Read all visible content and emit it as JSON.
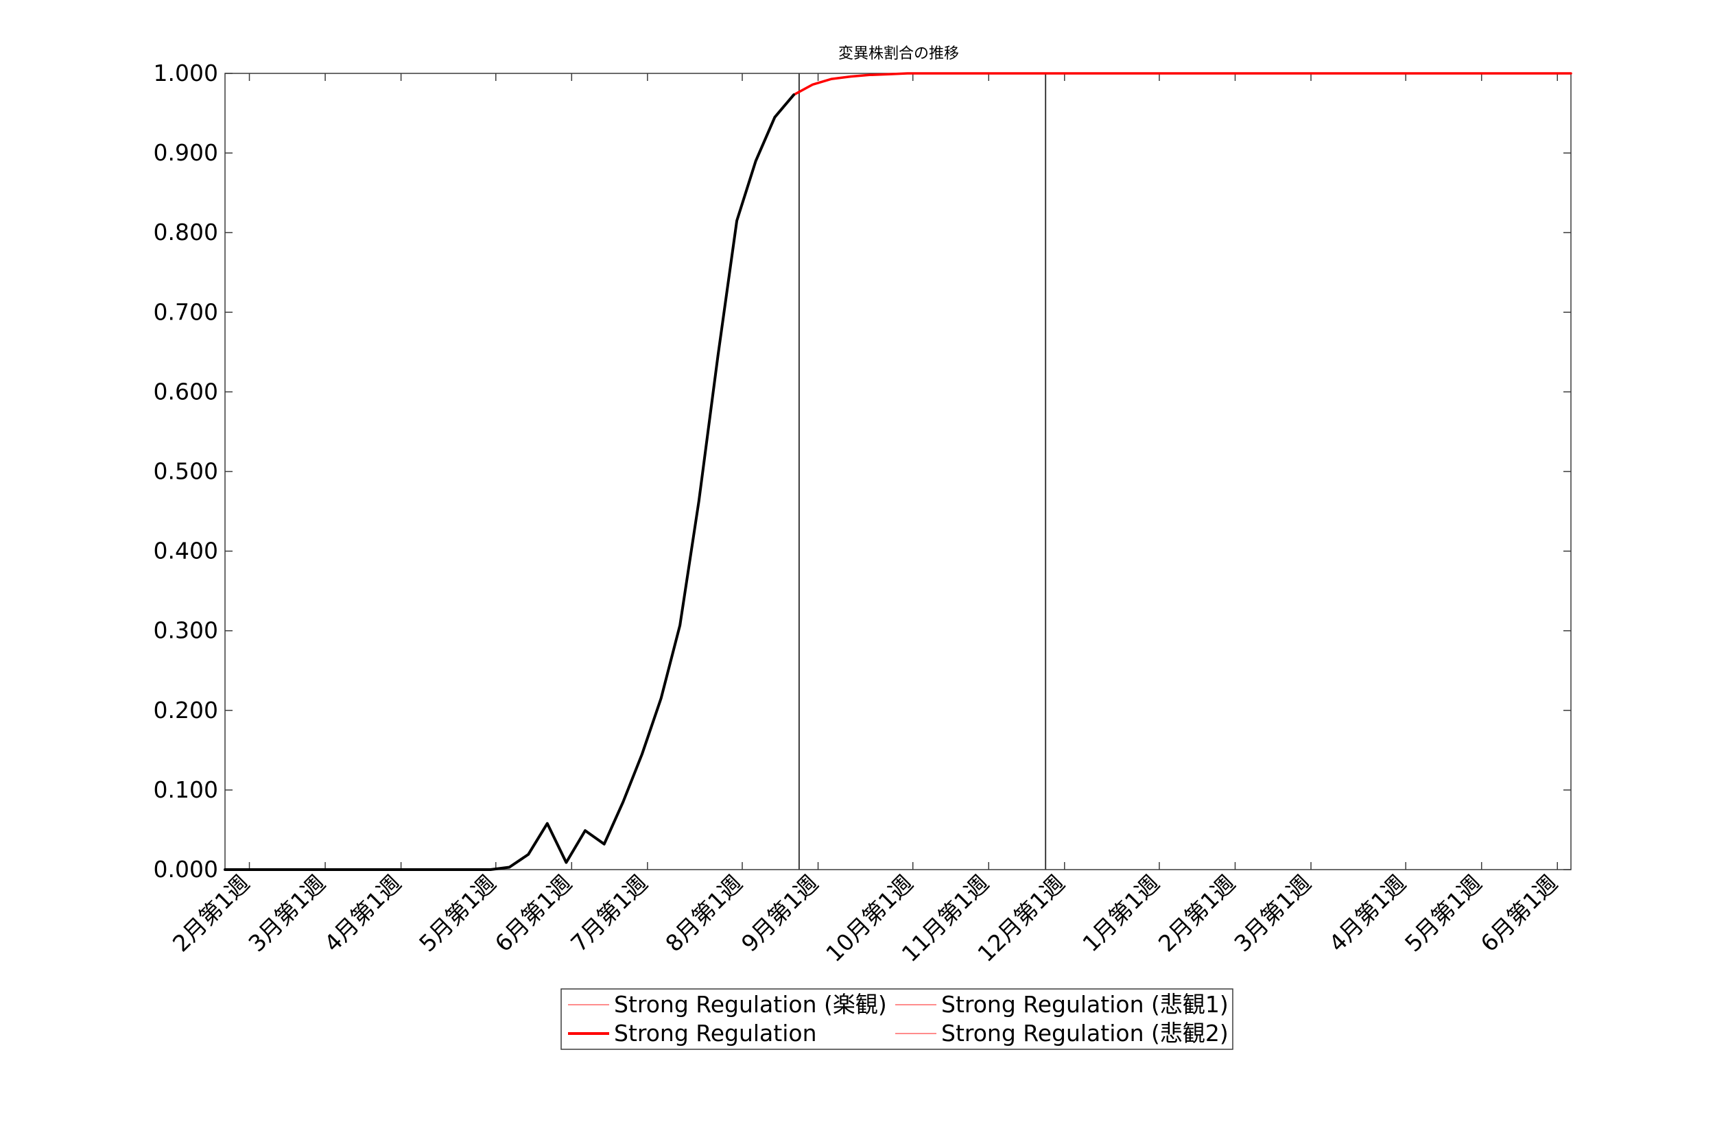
{
  "chart_data": {
    "type": "line",
    "title": "変異株割合の推移",
    "xlabel": "",
    "ylabel": "",
    "ylim": [
      0,
      1
    ],
    "grid": false,
    "legend_position": "bottom-center",
    "x_range": [
      "2021-01-23",
      "2022-06-04"
    ],
    "x_ticks": [
      {
        "date": "2021-02-01",
        "label": "2月第1週"
      },
      {
        "date": "2021-03-01",
        "label": "3月第1週"
      },
      {
        "date": "2021-03-29",
        "label": "4月第1週"
      },
      {
        "date": "2021-05-03",
        "label": "5月第1週"
      },
      {
        "date": "2021-05-31",
        "label": "6月第1週"
      },
      {
        "date": "2021-06-28",
        "label": "7月第1週"
      },
      {
        "date": "2021-08-02",
        "label": "8月第1週"
      },
      {
        "date": "2021-08-30",
        "label": "9月第1週"
      },
      {
        "date": "2021-10-04",
        "label": "10月第1週"
      },
      {
        "date": "2021-11-01",
        "label": "11月第1週"
      },
      {
        "date": "2021-11-29",
        "label": "12月第1週"
      },
      {
        "date": "2022-01-03",
        "label": "1月第1週"
      },
      {
        "date": "2022-01-31",
        "label": "2月第1週"
      },
      {
        "date": "2022-02-28",
        "label": "3月第1週"
      },
      {
        "date": "2022-04-04",
        "label": "4月第1週"
      },
      {
        "date": "2022-05-02",
        "label": "5月第1週"
      },
      {
        "date": "2022-05-30",
        "label": "6月第1週"
      }
    ],
    "y_ticks": [
      {
        "value": 0.0,
        "label": "0.000"
      },
      {
        "value": 0.1,
        "label": "0.100"
      },
      {
        "value": 0.2,
        "label": "0.200"
      },
      {
        "value": 0.3,
        "label": "0.300"
      },
      {
        "value": 0.4,
        "label": "0.400"
      },
      {
        "value": 0.5,
        "label": "0.500"
      },
      {
        "value": 0.6,
        "label": "0.600"
      },
      {
        "value": 0.7,
        "label": "0.700"
      },
      {
        "value": 0.8,
        "label": "0.800"
      },
      {
        "value": 0.9,
        "label": "0.900"
      },
      {
        "value": 1.0,
        "label": "1.000"
      }
    ],
    "vertical_lines": [
      "2021-08-23",
      "2021-11-22"
    ],
    "series": [
      {
        "name": "",
        "color": "#000000",
        "x": [
          "2021-01-23",
          "2021-01-30",
          "2021-02-06",
          "2021-02-13",
          "2021-02-20",
          "2021-02-27",
          "2021-03-06",
          "2021-03-13",
          "2021-03-20",
          "2021-03-27",
          "2021-04-03",
          "2021-04-10",
          "2021-04-17",
          "2021-04-24",
          "2021-05-01",
          "2021-05-08",
          "2021-05-15",
          "2021-05-22",
          "2021-05-29",
          "2021-06-05",
          "2021-06-12",
          "2021-06-19",
          "2021-06-26",
          "2021-07-03",
          "2021-07-10",
          "2021-07-17",
          "2021-07-24",
          "2021-07-31",
          "2021-08-07",
          "2021-08-14",
          "2021-08-21"
        ],
        "y": [
          0,
          0,
          0,
          0,
          0,
          0,
          0,
          0,
          0,
          0,
          0,
          0,
          0,
          0,
          0,
          0.003,
          0.019,
          0.058,
          0.009,
          0.049,
          0.032,
          0.085,
          0.145,
          0.215,
          0.307,
          0.463,
          0.645,
          0.815,
          0.89,
          0.945,
          0.973
        ]
      },
      {
        "name": "Strong Regulation (楽観)",
        "color": "#ff6666",
        "x": [
          "2021-08-21",
          "2021-08-28",
          "2021-09-04",
          "2021-09-11",
          "2021-09-18",
          "2021-09-25",
          "2021-10-02",
          "2021-10-16",
          "2021-11-13",
          "2022-06-04"
        ],
        "y": [
          0.973,
          0.986,
          0.993,
          0.996,
          0.998,
          0.999,
          1.0,
          1.0,
          1.0,
          1.0
        ]
      },
      {
        "name": "Strong Regulation",
        "color": "#ff0000",
        "x": [
          "2021-08-21",
          "2021-08-28",
          "2021-09-04",
          "2021-09-11",
          "2021-09-18",
          "2021-09-25",
          "2021-10-02",
          "2021-10-16",
          "2021-11-13",
          "2022-06-04"
        ],
        "y": [
          0.973,
          0.986,
          0.993,
          0.996,
          0.998,
          0.999,
          1.0,
          1.0,
          1.0,
          1.0
        ]
      },
      {
        "name": "Strong Regulation (悲観1)",
        "color": "#ff6666",
        "x": [
          "2021-08-21",
          "2021-08-28",
          "2021-09-04",
          "2021-09-11",
          "2021-09-18",
          "2021-09-25",
          "2021-10-02",
          "2021-10-16",
          "2021-11-13",
          "2022-06-04"
        ],
        "y": [
          0.973,
          0.986,
          0.993,
          0.996,
          0.998,
          0.999,
          1.0,
          1.0,
          1.0,
          1.0
        ]
      },
      {
        "name": "Strong Regulation (悲観2)",
        "color": "#ff6666",
        "x": [
          "2021-08-21",
          "2021-08-28",
          "2021-09-04",
          "2021-09-11",
          "2021-09-18",
          "2021-09-25",
          "2021-10-02",
          "2021-10-16",
          "2021-11-13",
          "2022-06-04"
        ],
        "y": [
          0.973,
          0.986,
          0.993,
          0.996,
          0.998,
          0.999,
          1.0,
          1.0,
          1.0,
          1.0
        ]
      }
    ]
  }
}
